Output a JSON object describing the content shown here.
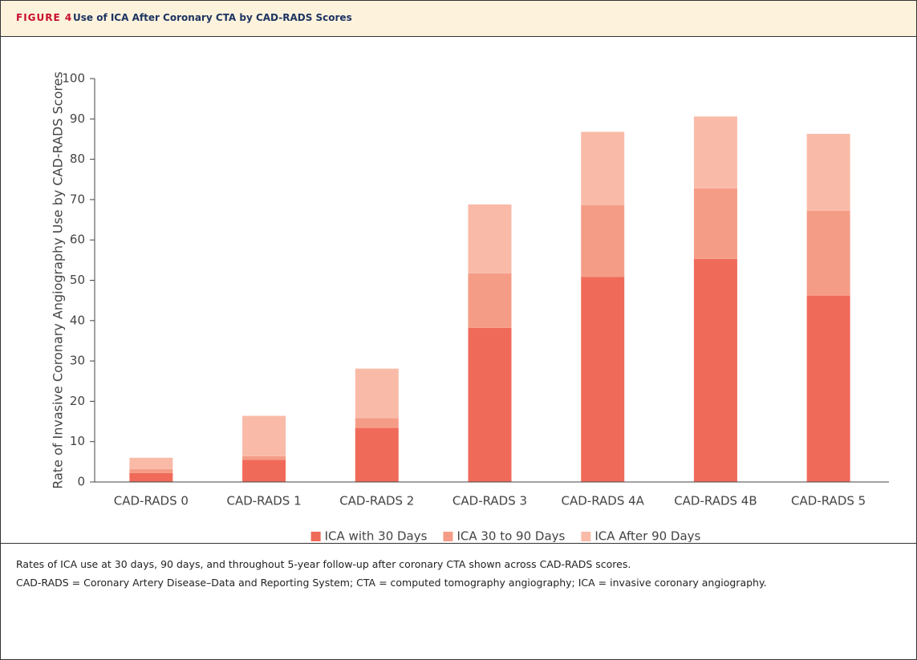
{
  "figure": {
    "label": "FIGURE 4",
    "title": "Use of ICA After Coronary CTA by CAD-RADS Scores"
  },
  "chart_data": {
    "type": "stacked-bar",
    "y_label": "Rate of Invasive Coronary Angiography Use by CAD-RADS Scores",
    "categories": [
      "CAD-RADS 0",
      "CAD-RADS 1",
      "CAD-RADS 2",
      "CAD-RADS 3",
      "CAD-RADS 4A",
      "CAD-RADS 4B",
      "CAD-RADS 5"
    ],
    "series": [
      {
        "name": "ICA with 30 Days",
        "color": "#f06a5a",
        "values": [
          2.2,
          5.5,
          13.4,
          38.2,
          50.8,
          55.3,
          46.2
        ]
      },
      {
        "name": "ICA 30 to 90 Days",
        "color": "#f59c86",
        "values": [
          1.0,
          0.9,
          2.4,
          13.5,
          17.8,
          17.5,
          21.0
        ]
      },
      {
        "name": "ICA After 90 Days",
        "color": "#f9bba8",
        "values": [
          2.8,
          10.0,
          12.3,
          17.1,
          18.2,
          17.8,
          19.1
        ]
      }
    ],
    "ylim": [
      0,
      100
    ],
    "yticks": [
      0,
      10,
      20,
      30,
      40,
      50,
      60,
      70,
      80,
      90,
      100
    ],
    "grid": false,
    "legend": "bottom"
  },
  "caption": [
    "Rates of ICA use at 30 days, 90 days, and throughout 5-year follow-up after coronary CTA shown across CAD-RADS scores.",
    "CAD-RADS = Coronary Artery Disease–Data and Reporting System; CTA = computed tomography angiography; ICA = invasive coronary angiography."
  ]
}
